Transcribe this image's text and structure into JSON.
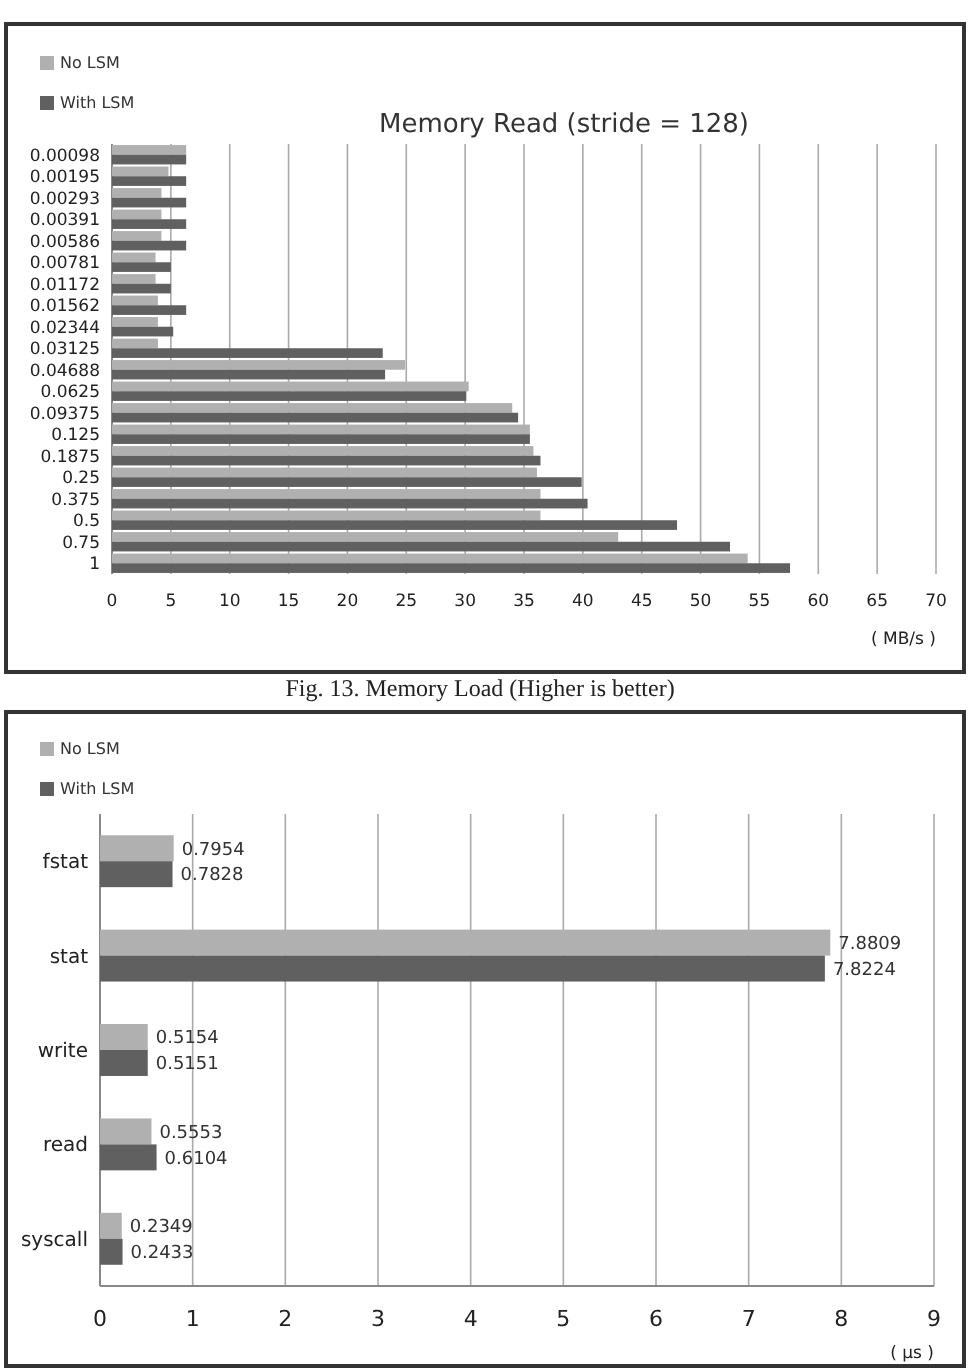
{
  "chart_data": [
    {
      "type": "bar",
      "orientation": "horizontal",
      "title": "Memory Read (stride = 128)",
      "xlabel": "( MB/s )",
      "categories": [
        "0.00098",
        "0.00195",
        "0.00293",
        "0.00391",
        "0.00586",
        "0.00781",
        "0.01172",
        "0.01562",
        "0.02344",
        "0.03125",
        "0.04688",
        "0.0625",
        "0.09375",
        "0.125",
        "0.1875",
        "0.25",
        "0.375",
        "0.5",
        "0.75",
        "1"
      ],
      "series": [
        {
          "name": "No LSM",
          "color": "#b0b0b0",
          "values": [
            6.3,
            4.8,
            4.2,
            4.2,
            4.2,
            3.7,
            3.7,
            3.9,
            3.9,
            3.9,
            24.9,
            30.3,
            34.0,
            35.5,
            35.8,
            36.1,
            36.4,
            36.4,
            43.0,
            54.0
          ]
        },
        {
          "name": "With LSM",
          "color": "#606060",
          "values": [
            6.3,
            6.3,
            6.3,
            6.3,
            6.3,
            5.0,
            5.0,
            6.3,
            5.2,
            23.0,
            23.2,
            30.1,
            34.5,
            35.5,
            36.4,
            39.9,
            40.4,
            48.0,
            52.5,
            57.6
          ]
        }
      ],
      "xlim": [
        0,
        70
      ],
      "xticks": [
        0,
        5,
        10,
        15,
        20,
        25,
        30,
        35,
        40,
        45,
        50,
        55,
        60,
        65,
        70
      ],
      "grid": "x",
      "legend": "top left",
      "annotations": [
        "Fig. 13. Memory Load (Higher is better)"
      ]
    },
    {
      "type": "bar",
      "orientation": "horizontal",
      "xlabel": "( µs )",
      "categories": [
        "fstat",
        "stat",
        "write",
        "read",
        "syscall"
      ],
      "series": [
        {
          "name": "No LSM",
          "color": "#b0b0b0",
          "values": [
            0.7954,
            7.8809,
            0.5154,
            0.5553,
            0.2349
          ]
        },
        {
          "name": "With LSM",
          "color": "#606060",
          "values": [
            0.7828,
            7.8224,
            0.5151,
            0.6104,
            0.2433
          ]
        }
      ],
      "xlim": [
        0,
        9
      ],
      "xticks": [
        0,
        1,
        2,
        3,
        4,
        5,
        6,
        7,
        8,
        9
      ],
      "grid": "x",
      "legend": "top left",
      "data_labels": true
    }
  ]
}
